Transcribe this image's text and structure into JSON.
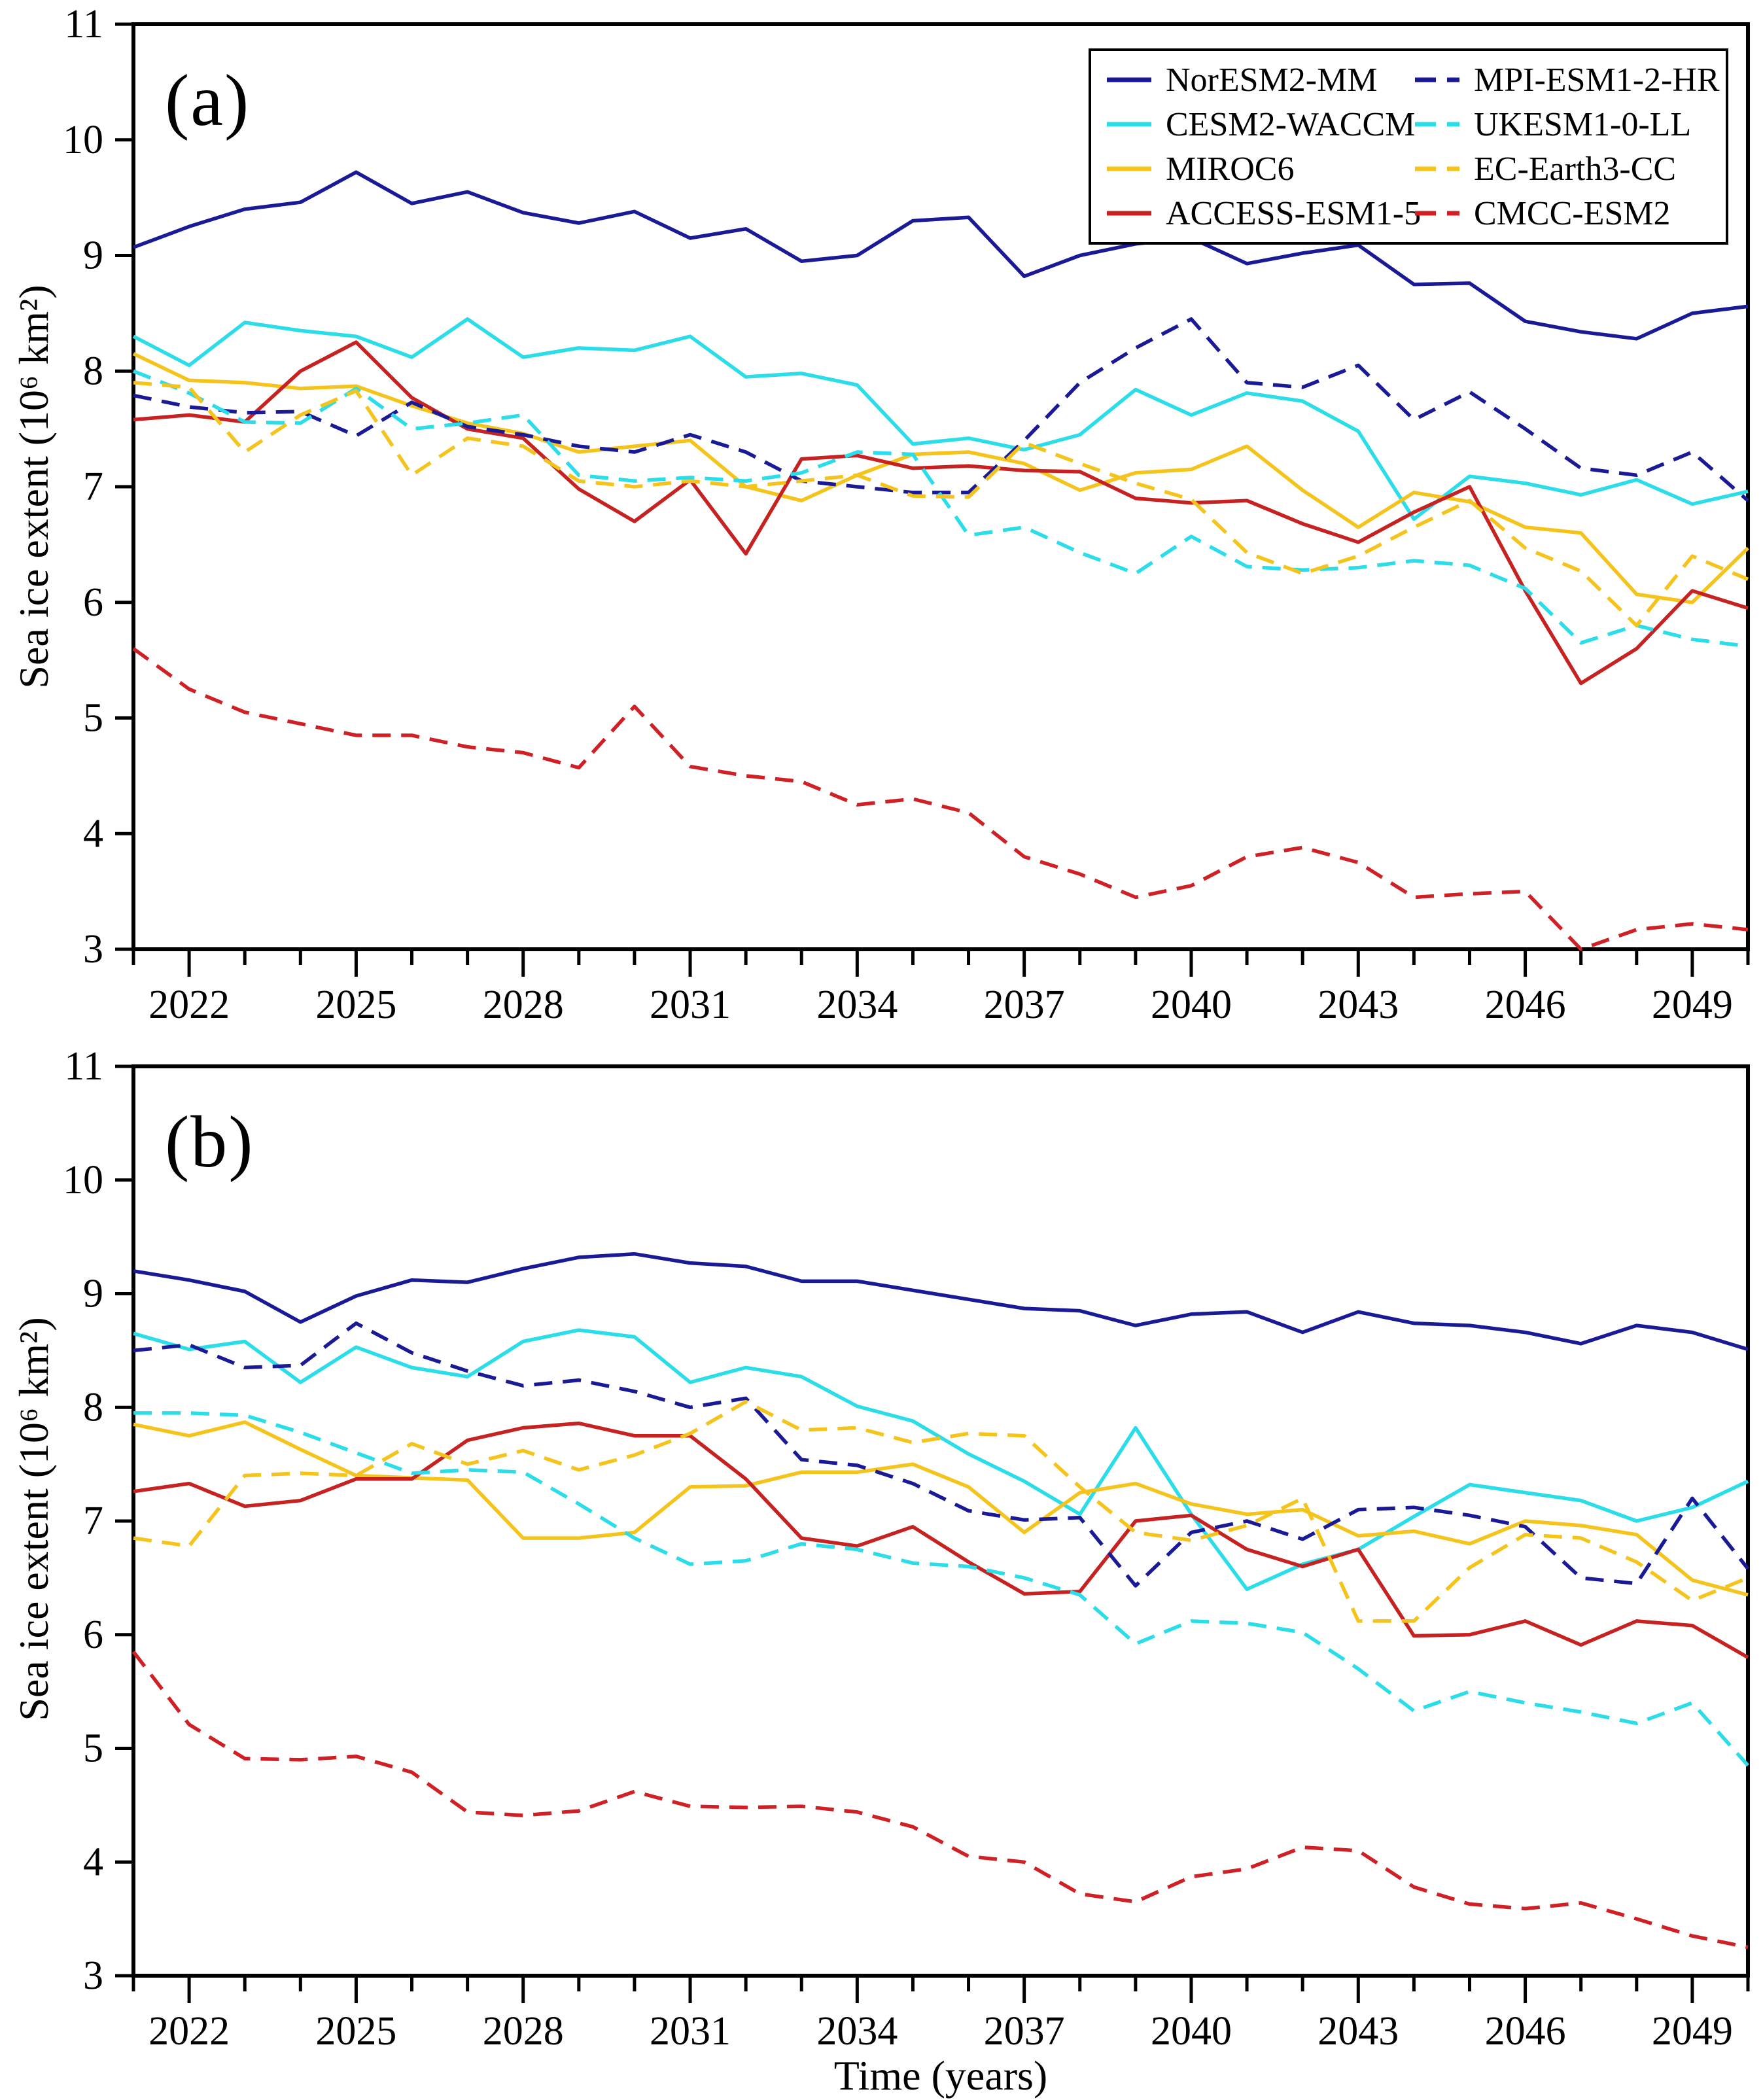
{
  "figure": {
    "ylabel": "Sea ice extent (10⁶ km²)",
    "xlabel": "Time (years)"
  },
  "colors": {
    "navy": "#1a1a96",
    "cyan": "#2bdce9",
    "gold": "#f5c41c",
    "red_solid": "#c62222",
    "red_dashed": "#cf2125",
    "axis": "#000000",
    "background": "#ffffff"
  },
  "legend": {
    "items": [
      {
        "label": "NorESM2-MM",
        "color": "#1a1a96",
        "dash": false
      },
      {
        "label": "CESM2-WACCM",
        "color": "#2bdce9",
        "dash": false
      },
      {
        "label": "MIROC6",
        "color": "#f5c41c",
        "dash": false
      },
      {
        "label": "ACCESS-ESM1-5",
        "color": "#c62222",
        "dash": false
      },
      {
        "label": "MPI-ESM1-2-HR",
        "color": "#1a1a96",
        "dash": true
      },
      {
        "label": "UKESM1-0-LL",
        "color": "#2bdce9",
        "dash": true
      },
      {
        "label": "EC-Earth3-CC",
        "color": "#f5c41c",
        "dash": true
      },
      {
        "label": "CMCC-ESM2",
        "color": "#cf2125",
        "dash": true
      }
    ]
  },
  "chart_data": [
    {
      "type": "line",
      "panel_label": "(a)",
      "ylabel": "Sea ice extent (10⁶ km²)",
      "xlabel": "",
      "x": [
        2021,
        2022,
        2023,
        2024,
        2025,
        2026,
        2027,
        2028,
        2029,
        2030,
        2031,
        2032,
        2033,
        2034,
        2035,
        2036,
        2037,
        2038,
        2039,
        2040,
        2041,
        2042,
        2043,
        2044,
        2045,
        2046,
        2047,
        2048,
        2049,
        2050
      ],
      "xlim": [
        2021,
        2050
      ],
      "ylim": [
        3,
        11
      ],
      "yticks": [
        3,
        4,
        5,
        6,
        7,
        8,
        9,
        10,
        11
      ],
      "xticks_major": [
        2022,
        2025,
        2028,
        2031,
        2034,
        2037,
        2040,
        2043,
        2046,
        2049
      ],
      "grid": false,
      "legend_position": "top-right",
      "series": [
        {
          "name": "NorESM2-MM",
          "color": "#1a1a96",
          "dash": false,
          "values": [
            9.07,
            9.25,
            9.4,
            9.46,
            9.72,
            9.45,
            9.55,
            9.37,
            9.28,
            9.38,
            9.15,
            9.23,
            8.95,
            9.0,
            9.3,
            9.33,
            8.82,
            9.0,
            9.1,
            9.15,
            8.93,
            9.02,
            9.09,
            8.75,
            8.76,
            8.43,
            8.34,
            8.28,
            8.5,
            8.56
          ]
        },
        {
          "name": "CESM2-WACCM",
          "color": "#2bdce9",
          "dash": false,
          "values": [
            8.3,
            8.05,
            8.42,
            8.35,
            8.3,
            8.12,
            8.45,
            8.12,
            8.2,
            8.18,
            8.3,
            7.95,
            7.98,
            7.88,
            7.37,
            7.42,
            7.32,
            7.45,
            7.84,
            7.62,
            7.81,
            7.74,
            7.48,
            6.72,
            7.09,
            7.03,
            6.93,
            7.06,
            6.85,
            6.96
          ]
        },
        {
          "name": "MIROC6",
          "color": "#f5c41c",
          "dash": false,
          "values": [
            8.15,
            7.92,
            7.9,
            7.85,
            7.87,
            7.7,
            7.55,
            7.46,
            7.3,
            7.35,
            7.4,
            7.0,
            6.88,
            7.1,
            7.28,
            7.3,
            7.2,
            6.97,
            7.12,
            7.15,
            7.35,
            6.97,
            6.65,
            6.95,
            6.87,
            6.65,
            6.6,
            6.07,
            6.0,
            6.47
          ]
        },
        {
          "name": "ACCESS-ESM1-5",
          "color": "#c62222",
          "dash": false,
          "values": [
            7.58,
            7.62,
            7.56,
            8.0,
            8.25,
            7.77,
            7.5,
            7.42,
            6.98,
            6.7,
            7.06,
            6.42,
            7.24,
            7.27,
            7.16,
            7.18,
            7.14,
            7.13,
            6.9,
            6.86,
            6.88,
            6.68,
            6.52,
            6.78,
            7.0,
            6.1,
            5.3,
            5.6,
            6.1,
            5.95
          ]
        },
        {
          "name": "MPI-ESM1-2-HR",
          "color": "#1a1a96",
          "dash": true,
          "values": [
            7.79,
            7.69,
            7.64,
            7.65,
            7.44,
            7.73,
            7.52,
            7.45,
            7.35,
            7.3,
            7.45,
            7.3,
            7.05,
            7.0,
            6.95,
            6.95,
            7.4,
            7.9,
            8.2,
            8.45,
            7.9,
            7.86,
            8.05,
            7.58,
            7.82,
            7.5,
            7.16,
            7.1,
            7.3,
            6.88
          ]
        },
        {
          "name": "UKESM1-0-LL",
          "color": "#2bdce9",
          "dash": true,
          "values": [
            8.0,
            7.81,
            7.56,
            7.55,
            7.85,
            7.5,
            7.55,
            7.62,
            7.1,
            7.05,
            7.08,
            7.05,
            7.12,
            7.3,
            7.28,
            6.58,
            6.65,
            6.43,
            6.25,
            6.57,
            6.31,
            6.28,
            6.3,
            6.36,
            6.32,
            6.12,
            5.65,
            5.8,
            5.68,
            5.62
          ]
        },
        {
          "name": "EC-Earth3-CC",
          "color": "#f5c41c",
          "dash": true,
          "values": [
            7.9,
            7.86,
            7.3,
            7.62,
            7.83,
            7.1,
            7.42,
            7.35,
            7.05,
            7.0,
            7.05,
            7.0,
            7.05,
            7.1,
            6.92,
            6.91,
            7.38,
            7.2,
            7.03,
            6.89,
            6.43,
            6.25,
            6.4,
            6.65,
            6.88,
            6.47,
            6.27,
            5.8,
            6.4,
            6.2
          ]
        },
        {
          "name": "CMCC-ESM2",
          "color": "#cf2125",
          "dash": true,
          "values": [
            5.6,
            5.25,
            5.05,
            4.95,
            4.85,
            4.85,
            4.75,
            4.7,
            4.57,
            5.1,
            4.58,
            4.5,
            4.45,
            4.25,
            4.3,
            4.18,
            3.8,
            3.65,
            3.45,
            3.55,
            3.8,
            3.88,
            3.75,
            3.45,
            3.48,
            3.5,
            3.0,
            3.17,
            3.22,
            3.17
          ]
        }
      ]
    },
    {
      "type": "line",
      "panel_label": "(b)",
      "ylabel": "Sea ice extent (10⁶ km²)",
      "xlabel": "Time (years)",
      "x": [
        2021,
        2022,
        2023,
        2024,
        2025,
        2026,
        2027,
        2028,
        2029,
        2030,
        2031,
        2032,
        2033,
        2034,
        2035,
        2036,
        2037,
        2038,
        2039,
        2040,
        2041,
        2042,
        2043,
        2044,
        2045,
        2046,
        2047,
        2048,
        2049,
        2050
      ],
      "xlim": [
        2021,
        2050
      ],
      "ylim": [
        3,
        11
      ],
      "yticks": [
        3,
        4,
        5,
        6,
        7,
        8,
        9,
        10,
        11
      ],
      "xticks_major": [
        2022,
        2025,
        2028,
        2031,
        2034,
        2037,
        2040,
        2043,
        2046,
        2049
      ],
      "grid": false,
      "legend_position": "none",
      "series": [
        {
          "name": "NorESM2-MM",
          "color": "#1a1a96",
          "dash": false,
          "values": [
            9.2,
            9.12,
            9.02,
            8.75,
            8.98,
            9.12,
            9.1,
            9.22,
            9.32,
            9.35,
            9.27,
            9.24,
            9.11,
            9.11,
            9.03,
            8.95,
            8.87,
            8.85,
            8.72,
            8.82,
            8.84,
            8.66,
            8.84,
            8.74,
            8.72,
            8.66,
            8.56,
            8.72,
            8.66,
            8.51
          ]
        },
        {
          "name": "CESM2-WACCM",
          "color": "#2bdce9",
          "dash": false,
          "values": [
            8.65,
            8.51,
            8.58,
            8.22,
            8.53,
            8.35,
            8.27,
            8.58,
            8.68,
            8.62,
            8.22,
            8.35,
            8.27,
            8.01,
            7.88,
            7.59,
            7.35,
            7.06,
            7.82,
            7.06,
            6.4,
            6.62,
            6.75,
            7.04,
            7.32,
            7.25,
            7.18,
            7.0,
            7.12,
            7.35
          ]
        },
        {
          "name": "MIROC6",
          "color": "#f5c41c",
          "dash": false,
          "values": [
            7.85,
            7.75,
            7.87,
            7.63,
            7.4,
            7.38,
            7.36,
            6.85,
            6.85,
            6.9,
            7.3,
            7.31,
            7.43,
            7.43,
            7.5,
            7.3,
            6.9,
            7.25,
            7.33,
            7.15,
            7.06,
            7.1,
            6.87,
            6.91,
            6.8,
            7.0,
            6.96,
            6.88,
            6.48,
            6.35
          ]
        },
        {
          "name": "ACCESS-ESM1-5",
          "color": "#c62222",
          "dash": false,
          "values": [
            7.26,
            7.33,
            7.13,
            7.18,
            7.37,
            7.37,
            7.71,
            7.82,
            7.86,
            7.75,
            7.75,
            7.37,
            6.85,
            6.78,
            6.95,
            6.64,
            6.36,
            6.38,
            7.0,
            7.05,
            6.75,
            6.6,
            6.75,
            5.99,
            6.0,
            6.12,
            5.91,
            6.12,
            6.08,
            5.8
          ]
        },
        {
          "name": "MPI-ESM1-2-HR",
          "color": "#1a1a96",
          "dash": true,
          "values": [
            8.5,
            8.55,
            8.35,
            8.37,
            8.74,
            8.48,
            8.32,
            8.19,
            8.24,
            8.14,
            8.0,
            8.08,
            7.54,
            7.49,
            7.33,
            7.09,
            7.01,
            7.03,
            6.43,
            6.9,
            7.0,
            6.84,
            7.1,
            7.12,
            7.05,
            6.95,
            6.5,
            6.45,
            7.2,
            6.58
          ]
        },
        {
          "name": "UKESM1-0-LL",
          "color": "#2bdce9",
          "dash": true,
          "values": [
            7.95,
            7.95,
            7.93,
            7.78,
            7.6,
            7.42,
            7.45,
            7.43,
            7.15,
            6.85,
            6.62,
            6.65,
            6.8,
            6.75,
            6.63,
            6.6,
            6.5,
            6.35,
            5.92,
            6.12,
            6.1,
            6.02,
            5.7,
            5.33,
            5.5,
            5.4,
            5.32,
            5.22,
            5.4,
            4.85
          ]
        },
        {
          "name": "EC-Earth3-CC",
          "color": "#f5c41c",
          "dash": true,
          "values": [
            6.85,
            6.78,
            7.4,
            7.42,
            7.4,
            7.68,
            7.5,
            7.62,
            7.45,
            7.58,
            7.77,
            8.05,
            7.8,
            7.82,
            7.69,
            7.77,
            7.75,
            7.3,
            6.9,
            6.83,
            6.96,
            7.2,
            6.12,
            6.12,
            6.59,
            6.88,
            6.85,
            6.64,
            6.3,
            6.5
          ]
        },
        {
          "name": "CMCC-ESM2",
          "color": "#cf2125",
          "dash": true,
          "values": [
            5.85,
            5.21,
            4.91,
            4.9,
            4.93,
            4.79,
            4.44,
            4.41,
            4.45,
            4.62,
            4.49,
            4.48,
            4.49,
            4.44,
            4.31,
            4.05,
            4.0,
            3.72,
            3.65,
            3.87,
            3.94,
            4.13,
            4.1,
            3.78,
            3.63,
            3.59,
            3.64,
            3.5,
            3.35,
            3.25
          ]
        }
      ]
    }
  ]
}
